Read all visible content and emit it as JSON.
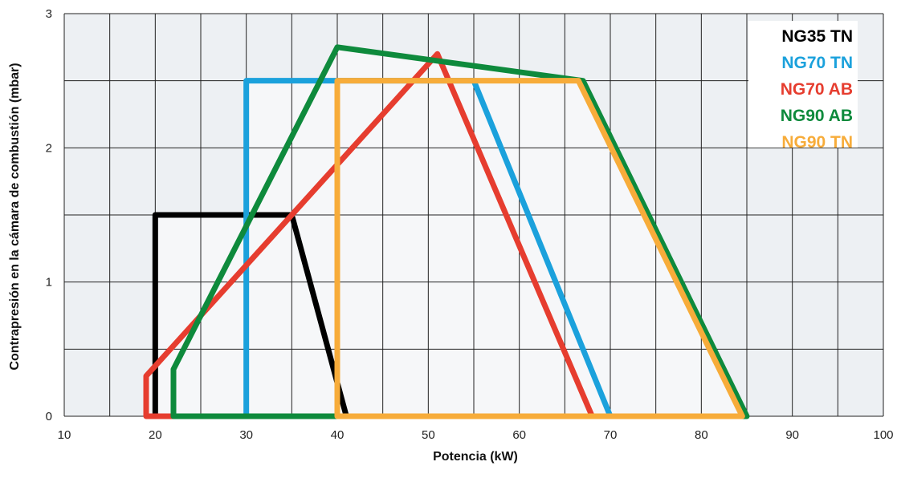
{
  "chart_data": {
    "type": "line",
    "title": "",
    "xlabel": "Potencia (kW)",
    "ylabel": "Contrapresión en la cámara de combustión (mbar)",
    "xlim": [
      10,
      100
    ],
    "ylim": [
      0,
      3
    ],
    "x_ticks": [
      "10",
      "20",
      "30",
      "40",
      "50",
      "60",
      "70",
      "80",
      "90",
      "100"
    ],
    "y_ticks": [
      "0",
      "1",
      "2",
      "3"
    ],
    "grid": true,
    "legend_position": "top-right",
    "colors": {
      "plot_background": "#edf0f3",
      "region_fill": "#f6f7f9",
      "grid": "#222222"
    },
    "series": [
      {
        "name": "NG35 TN",
        "color": "#000000",
        "points": [
          [
            20,
            0
          ],
          [
            20,
            1.5
          ],
          [
            35,
            1.5
          ],
          [
            41,
            0
          ],
          [
            20,
            0
          ]
        ]
      },
      {
        "name": "NG70 TN",
        "color": "#1ba1dc",
        "points": [
          [
            30,
            0
          ],
          [
            30,
            2.5
          ],
          [
            55,
            2.5
          ],
          [
            70,
            0
          ],
          [
            30,
            0
          ]
        ]
      },
      {
        "name": "NG70 AB",
        "color": "#e63d2f",
        "points": [
          [
            19,
            0
          ],
          [
            19,
            0.3
          ],
          [
            51,
            2.7
          ],
          [
            68,
            0
          ],
          [
            19,
            0
          ]
        ]
      },
      {
        "name": "NG90 AB",
        "color": "#0e8a3c",
        "points": [
          [
            22,
            0
          ],
          [
            22,
            0.35
          ],
          [
            40,
            2.75
          ],
          [
            67,
            2.5
          ],
          [
            85,
            0
          ],
          [
            22,
            0
          ]
        ]
      },
      {
        "name": "NG90 TN",
        "color": "#f7ac3a",
        "points": [
          [
            40,
            0
          ],
          [
            40,
            2.5
          ],
          [
            66.5,
            2.5
          ],
          [
            84.5,
            0
          ],
          [
            40,
            0
          ]
        ]
      }
    ]
  }
}
